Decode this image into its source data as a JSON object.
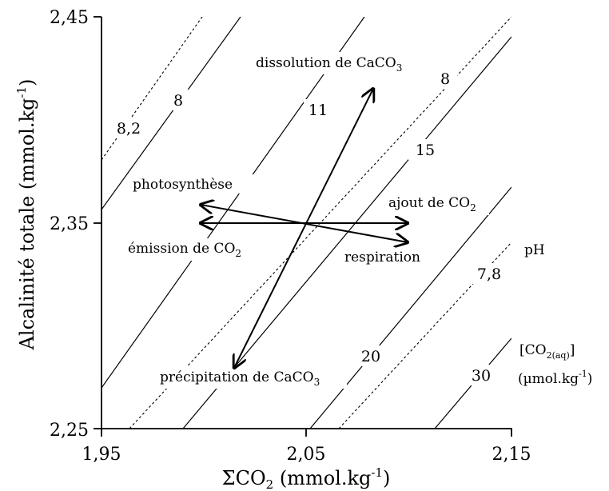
{
  "chart_data": {
    "type": "diagram",
    "xlabel": {
      "main": "ΣCO",
      "sub": "2",
      "unit": " (mmol.kg",
      "sup": "-1",
      "close": ")"
    },
    "ylabel": {
      "main": "Alcalinité totale (mmol.kg",
      "sup": "-1",
      "close": ")"
    },
    "xlim": [
      1.95,
      2.15
    ],
    "ylim": [
      2.25,
      2.45
    ],
    "xticks": [
      "1,95",
      "2,05",
      "2,15"
    ],
    "yticks": [
      "2,25",
      "2,35",
      "2,45"
    ],
    "legend": {
      "ph": "pH",
      "co2_line1": "[CO",
      "co2_sub": "2(aq)",
      "co2_close": "]",
      "co2_unit": "(µmol.kg",
      "co2_unit_sup": "-1",
      "co2_unit_close": ")"
    },
    "co2_isolines": [
      {
        "label": "8"
      },
      {
        "label": "11"
      },
      {
        "label": "15"
      },
      {
        "label": "20"
      },
      {
        "label": "30"
      }
    ],
    "ph_isolines": [
      {
        "label": "8,2"
      },
      {
        "label": "8"
      },
      {
        "label": "7,8"
      }
    ],
    "processes": [
      {
        "label": "dissolution de CaCO",
        "sub": "3"
      },
      {
        "label": "précipitation de CaCO",
        "sub": "3"
      },
      {
        "label": "photosynthèse"
      },
      {
        "label": "respiration"
      },
      {
        "label": "ajout de CO",
        "sub": "2"
      },
      {
        "label": "émission de CO",
        "sub": "2"
      }
    ]
  }
}
